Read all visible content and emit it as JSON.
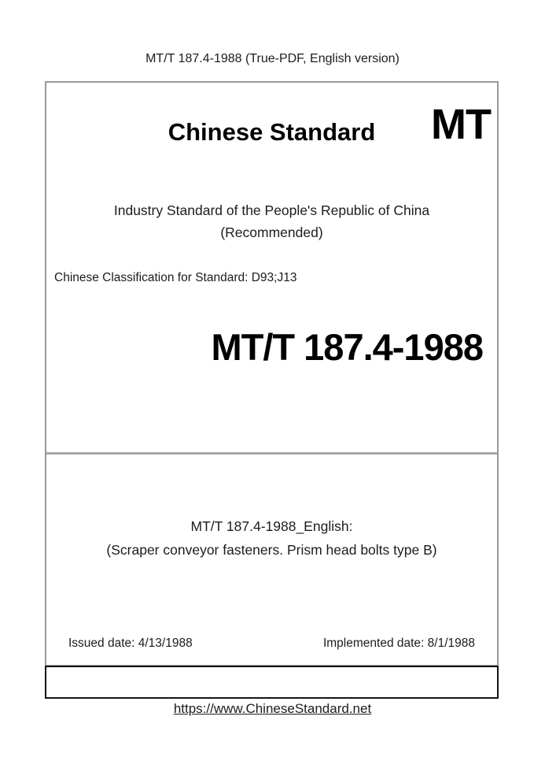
{
  "page": {
    "header": "MT/T 187.4-1988 (True-PDF, English version)",
    "footer_link": "https://www.ChineseStandard.net"
  },
  "cover": {
    "brand_title": "Chinese Standard",
    "brand_code": "MT",
    "org_line1": "Industry Standard of the People's Republic of China",
    "org_line2": "(Recommended)",
    "classification": "Chinese Classification for Standard: D93;J13",
    "standard_number": "MT/T 187.4-1988",
    "english_title_line1": "MT/T 187.4-1988_English:",
    "english_title_line2": "(Scraper conveyor fasteners. Prism head bolts type B)",
    "issued_date": "Issued date: 4/13/1988",
    "implemented_date": "Implemented date: 8/1/1988"
  },
  "colors": {
    "cover_border": "#999999",
    "bottom_box_border": "#161616",
    "divider": "#a6a6a6",
    "text": "#1c1c1c"
  }
}
